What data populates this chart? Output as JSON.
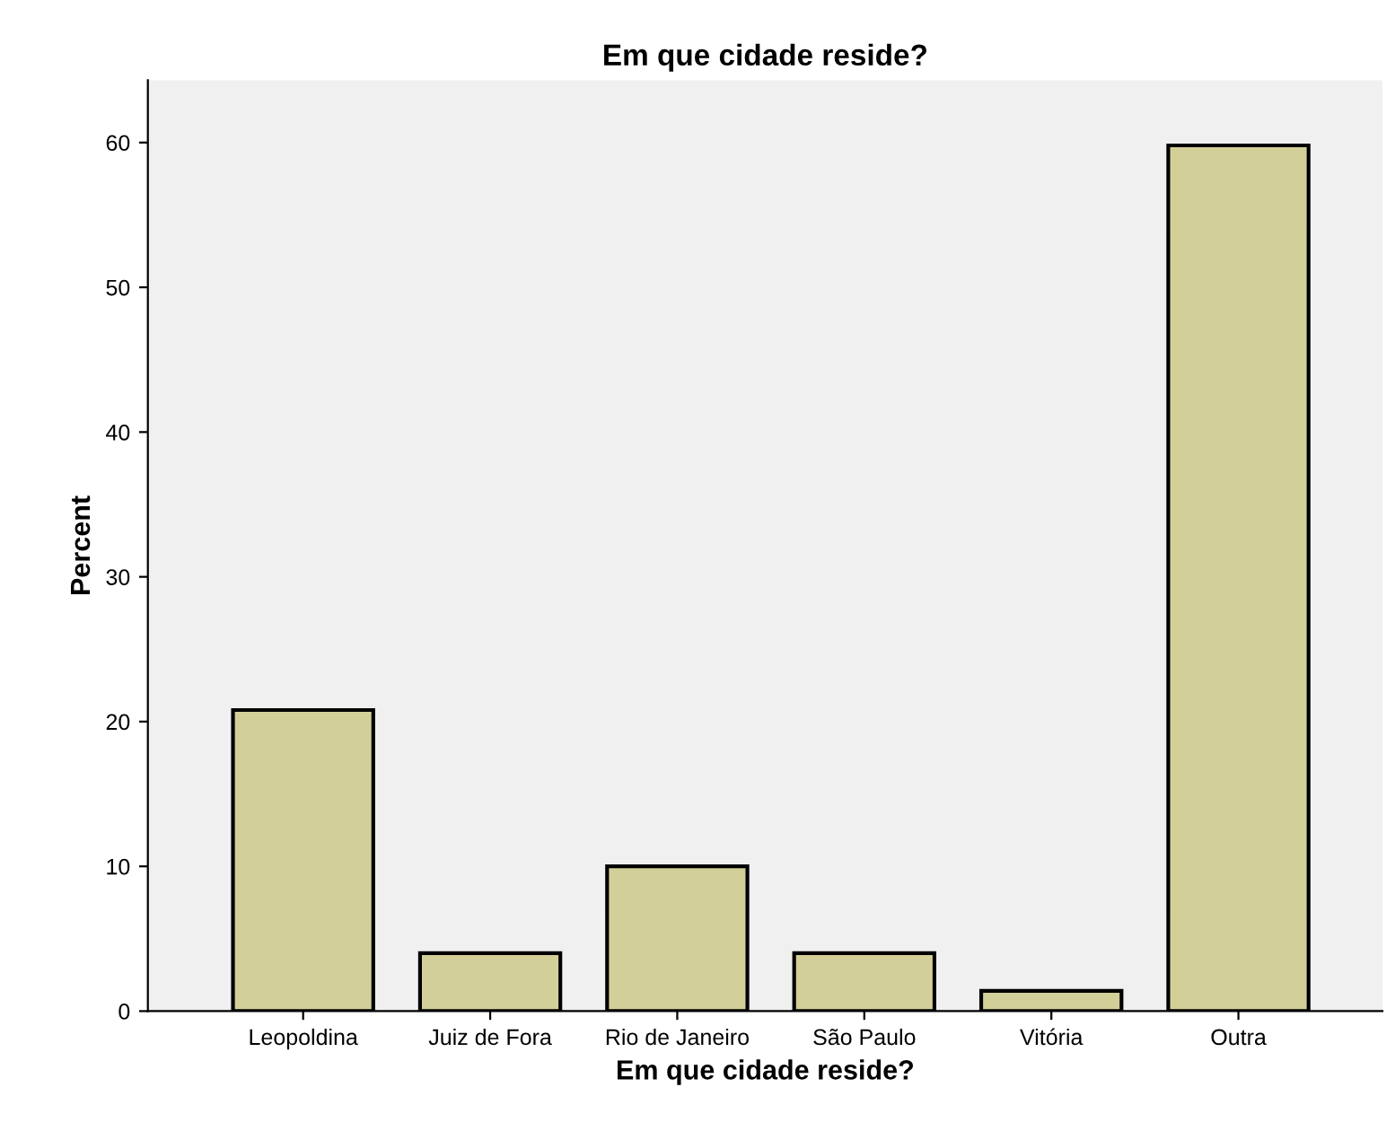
{
  "chart_data": {
    "type": "bar",
    "title": "Em que cidade reside?",
    "xlabel": "Em que cidade reside?",
    "ylabel": "Percent",
    "categories": [
      "Leopoldina",
      "Juiz de Fora",
      "Rio de Janeiro",
      "São Paulo",
      "Vitória",
      "Outra"
    ],
    "values": [
      20.8,
      4.0,
      10.0,
      4.0,
      1.4,
      59.8
    ],
    "color": "#d3cf98",
    "ylim": [
      0,
      64.3
    ],
    "yticks": [
      0,
      10,
      20,
      30,
      40,
      50,
      60
    ],
    "grid": false,
    "legend": false
  }
}
